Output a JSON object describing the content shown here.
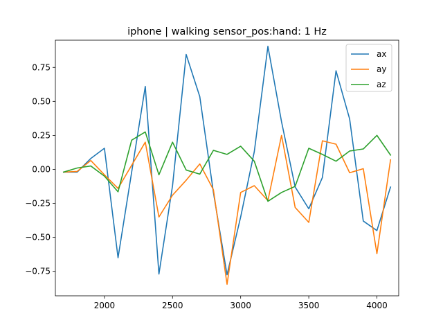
{
  "chart_data": {
    "type": "line",
    "title": "iphone | walking sensor_pos:hand: 1 Hz",
    "xlabel": "",
    "ylabel": "",
    "xlim": [
      1640,
      4160
    ],
    "ylim": [
      -0.93,
      0.95
    ],
    "xticks": [
      2000,
      2500,
      3000,
      3500,
      4000
    ],
    "yticks": [
      -0.75,
      -0.5,
      -0.25,
      0.0,
      0.25,
      0.5,
      0.75
    ],
    "xtick_labels": [
      "2000",
      "2500",
      "3000",
      "3500",
      "4000"
    ],
    "ytick_labels": [
      "−0.75",
      "−0.50",
      "−0.25",
      "0.00",
      "0.25",
      "0.50",
      "0.75"
    ],
    "grid": false,
    "legend_position": "upper right",
    "x": [
      1700,
      1800,
      1900,
      2000,
      2100,
      2200,
      2300,
      2400,
      2500,
      2600,
      2700,
      2800,
      2900,
      3000,
      3100,
      3200,
      3300,
      3400,
      3500,
      3600,
      3700,
      3800,
      3900,
      4000,
      4100
    ],
    "series": [
      {
        "name": "ax",
        "color": "#1f77b4",
        "values": [
          -0.02,
          -0.02,
          0.08,
          0.155,
          -0.65,
          -0.02,
          0.61,
          -0.77,
          -0.12,
          0.845,
          0.535,
          -0.17,
          -0.775,
          -0.35,
          0.13,
          0.905,
          0.35,
          -0.13,
          -0.29,
          -0.06,
          0.725,
          0.37,
          -0.38,
          -0.45,
          -0.13
        ]
      },
      {
        "name": "ay",
        "color": "#ff7f0e",
        "values": [
          -0.02,
          -0.015,
          0.065,
          -0.04,
          -0.14,
          0.03,
          0.2,
          -0.35,
          -0.19,
          -0.08,
          0.04,
          -0.15,
          -0.845,
          -0.17,
          -0.12,
          -0.23,
          0.25,
          -0.28,
          -0.39,
          0.21,
          0.185,
          -0.025,
          0.005,
          -0.62,
          0.07
        ]
      },
      {
        "name": "az",
        "color": "#2ca02c",
        "values": [
          -0.02,
          0.01,
          0.025,
          -0.05,
          -0.165,
          0.215,
          0.275,
          -0.04,
          0.2,
          -0.005,
          -0.035,
          0.14,
          0.11,
          0.17,
          0.06,
          -0.235,
          -0.17,
          -0.125,
          0.155,
          0.11,
          0.06,
          0.135,
          0.15,
          0.25,
          0.105
        ]
      }
    ]
  }
}
